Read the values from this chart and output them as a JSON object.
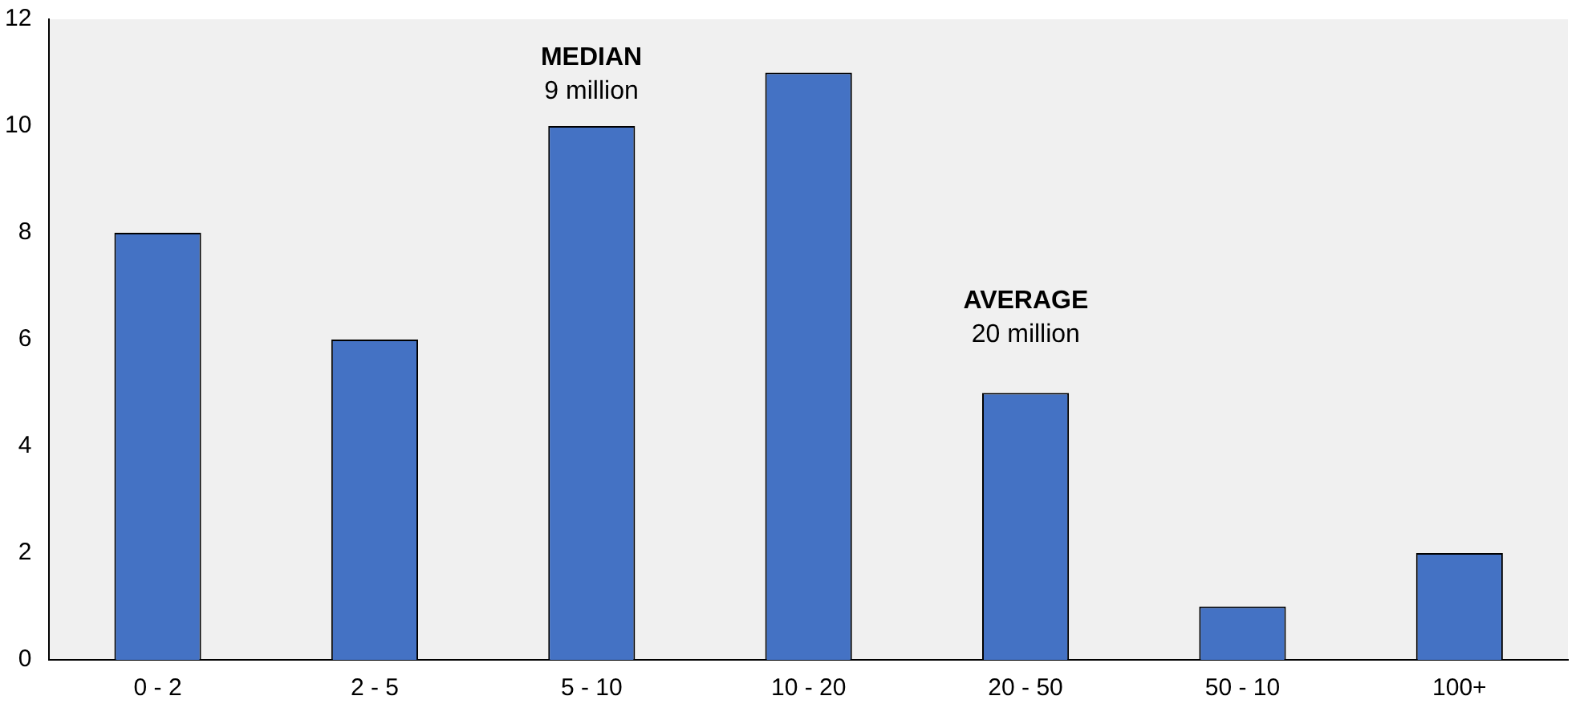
{
  "chart_data": {
    "type": "bar",
    "categories": [
      "0 - 2",
      "2 - 5",
      "5 - 10",
      "10 - 20",
      "20 - 50",
      "50 - 10",
      "100+"
    ],
    "values": [
      8,
      6,
      10,
      11,
      5,
      1,
      2
    ],
    "color": "#4472c4",
    "ylim": [
      0,
      12
    ],
    "yticks": [
      0,
      2,
      4,
      6,
      8,
      10,
      12
    ],
    "grid": false,
    "legend": false,
    "annotations": [
      "MEDIAN\n9 million",
      "AVERAGE\n20 million"
    ]
  }
}
